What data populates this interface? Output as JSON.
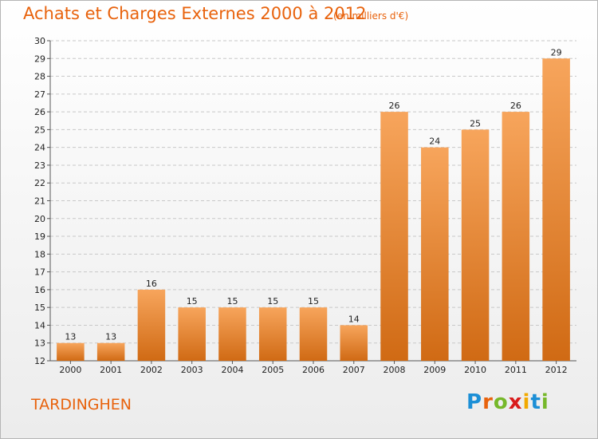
{
  "header": {
    "title": "Achats et Charges Externes 2000 à 2012",
    "subtitle": "(en milliers d'€)"
  },
  "footer": {
    "commune": "TARDINGHEN",
    "logo_letters": [
      "P",
      "r",
      "o",
      "x",
      "i",
      "t",
      "i"
    ]
  },
  "colors": {
    "bar_light": "#f7a55c",
    "bar_dark": "#d06a14",
    "accent": "#e8620c",
    "grid": "#c8c8c8"
  },
  "chart_data": {
    "type": "bar",
    "title": "Achats et Charges Externes 2000 à 2012",
    "subtitle": "(en milliers d'€)",
    "categories": [
      "2000",
      "2001",
      "2002",
      "2003",
      "2004",
      "2005",
      "2006",
      "2007",
      "2008",
      "2009",
      "2010",
      "2011",
      "2012"
    ],
    "values": [
      13,
      13,
      16,
      15,
      15,
      15,
      15,
      14,
      26,
      24,
      25,
      26,
      29
    ],
    "ylim": [
      12,
      30
    ],
    "yticks": [
      12,
      13,
      14,
      15,
      16,
      17,
      18,
      19,
      20,
      21,
      22,
      23,
      24,
      25,
      26,
      27,
      28,
      29,
      30
    ],
    "grid": true
  }
}
